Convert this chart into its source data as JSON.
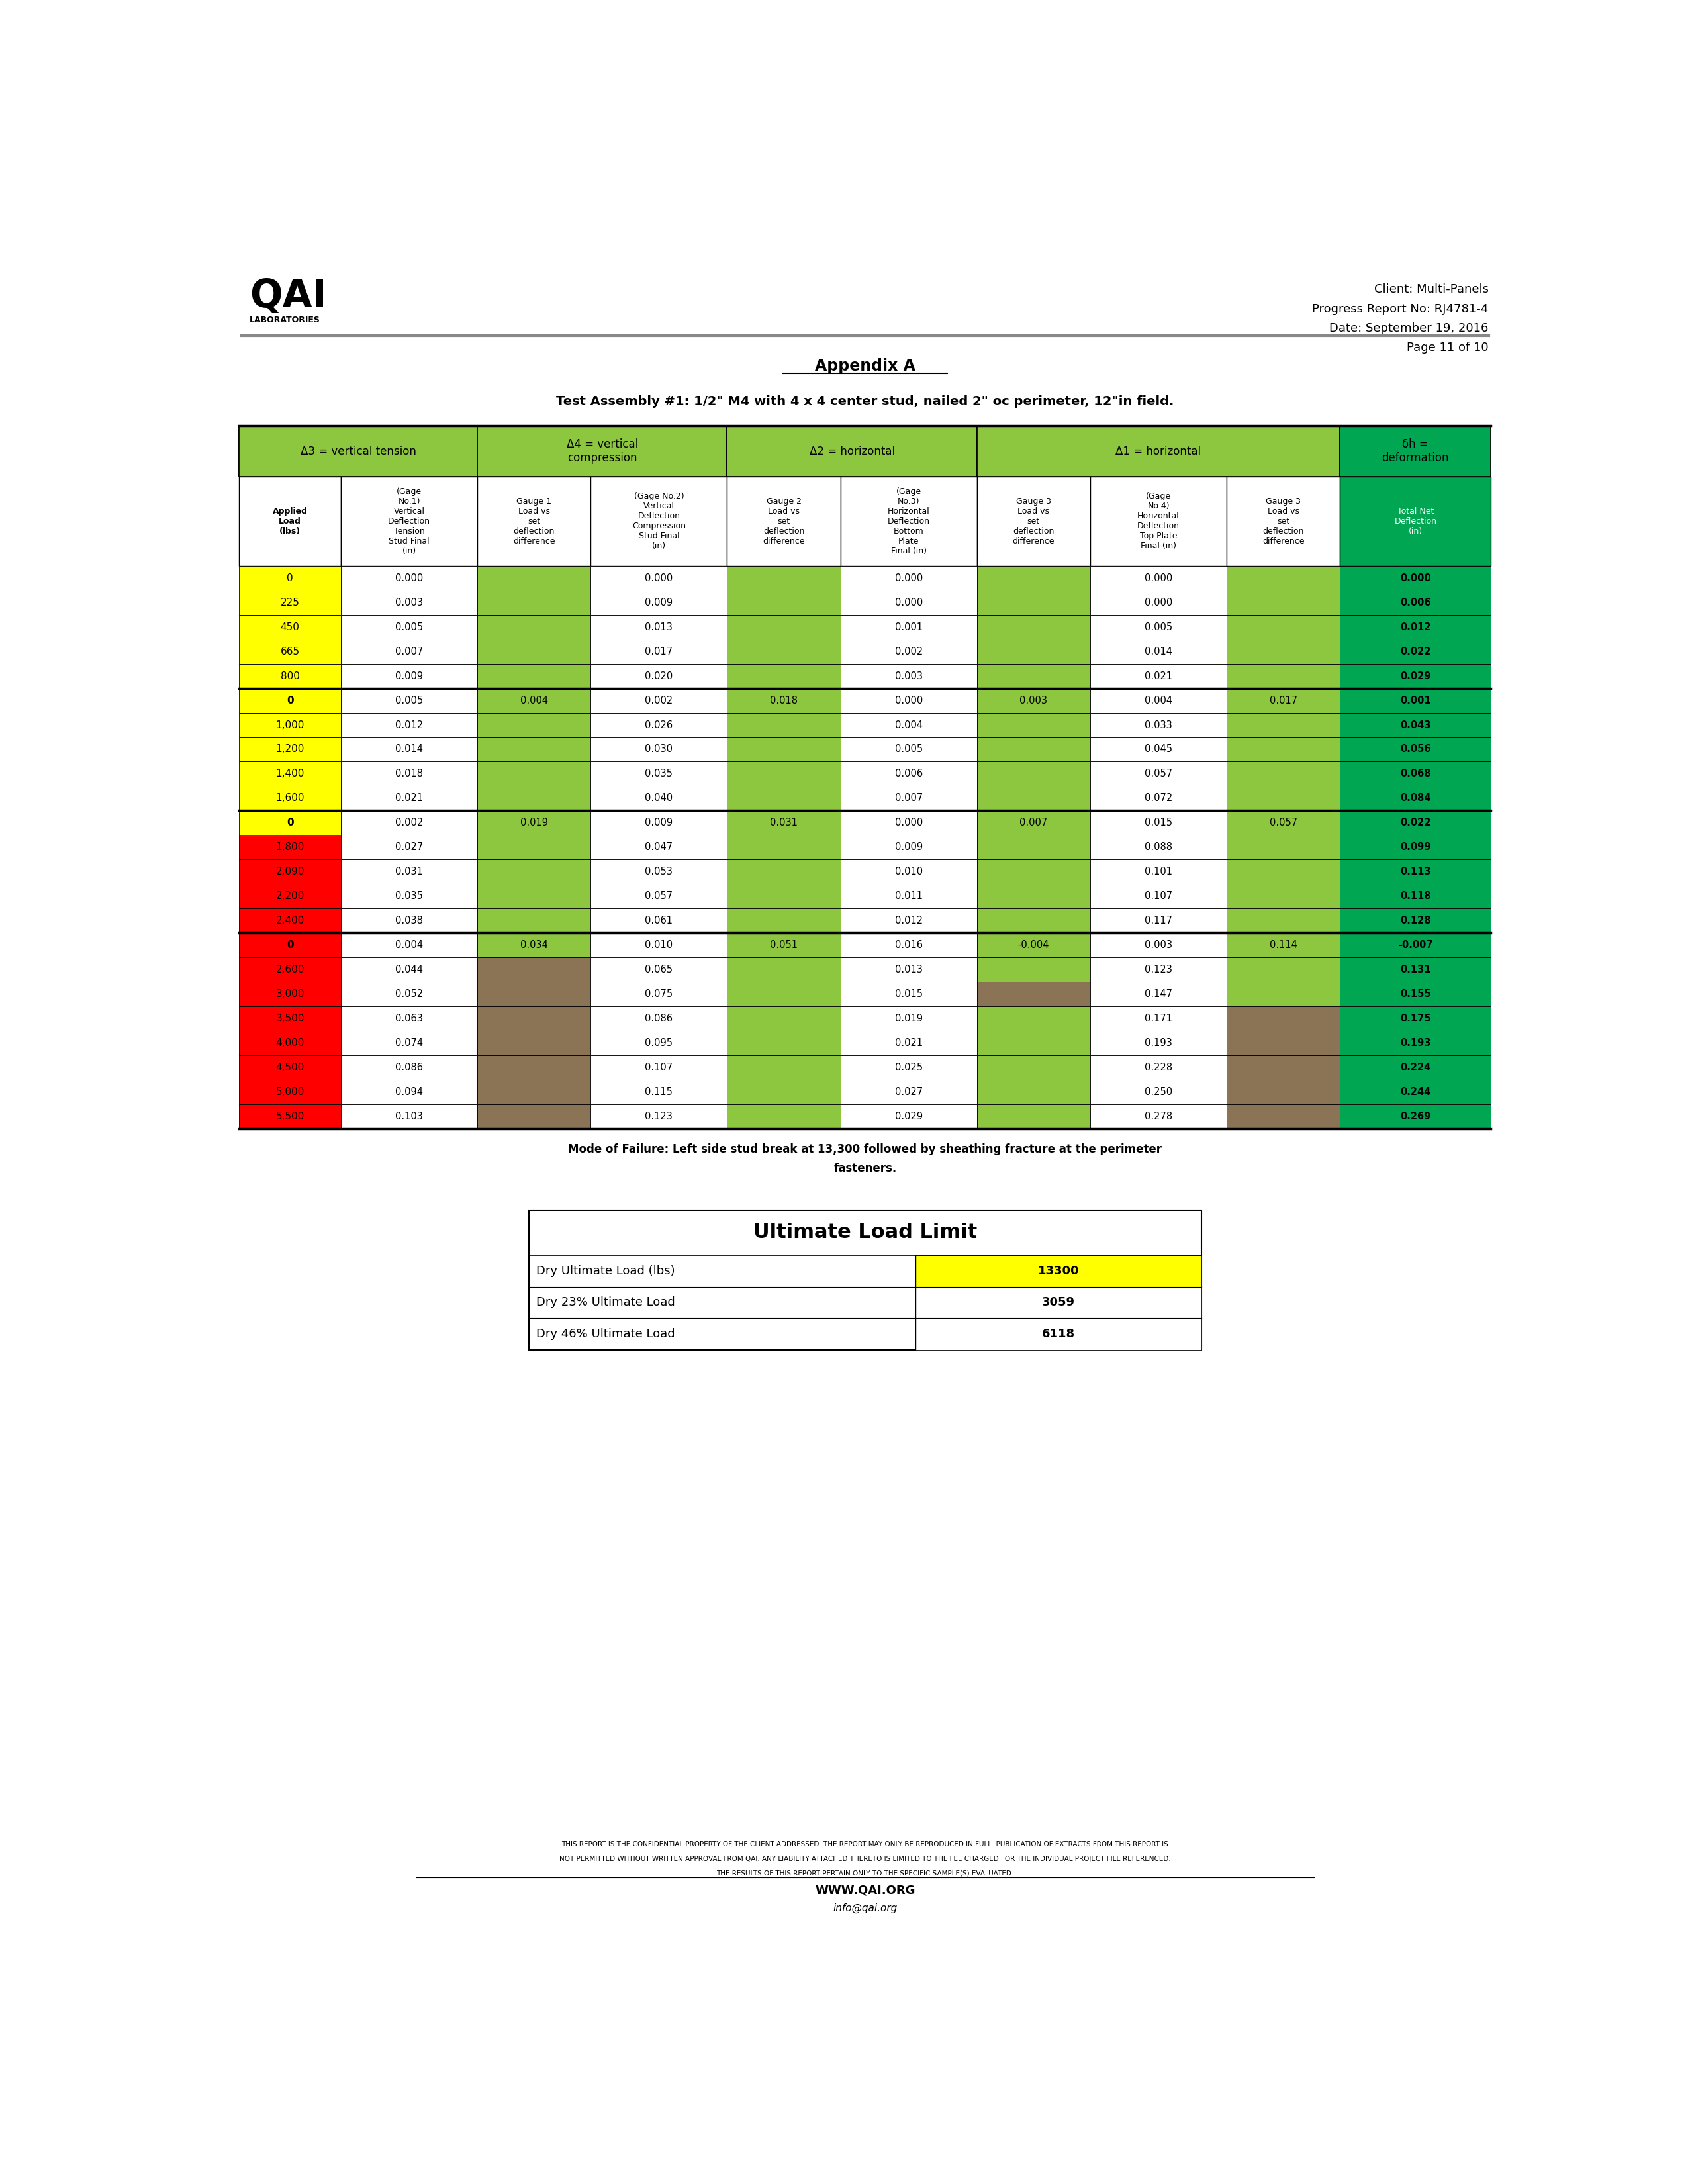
{
  "page_title_lines": [
    "Client: Multi-Panels",
    "Progress Report No: RJ4781-4",
    "Date: September 19, 2016",
    "Page 11 of 10"
  ],
  "appendix_title": "Appendix A",
  "test_assembly_title": "Test Assembly #1: 1/2\" M4 with 4 x 4 center stud, nailed 2\" oc perimeter, 12\"in field.",
  "delta3_header": "Δ3 = vertical tension",
  "delta4_header": "Δ4 = vertical\ncompression",
  "delta2_header": "Δ2 = horizontal",
  "delta1_header": "Δ1 = horizontal",
  "deltah_header": "δh =\ndeformation",
  "col_header_texts": [
    "Applied\nLoad\n(lbs)",
    "(Gage\nNo.1)\nVertical\nDeflection\nTension\nStud Final\n(in)",
    "Gauge 1\nLoad vs\nset\ndeflection\ndifference",
    "(Gage No.2)\nVertical\nDeflection\nCompression\nStud Final\n(in)",
    "Gauge 2\nLoad vs\nset\ndeflection\ndifference",
    "(Gage\nNo.3)\nHorizontal\nDeflection\nBottom\nPlate\nFinal (in)",
    "Gauge 3\nLoad vs\nset\ndeflection\ndifference",
    "(Gage\nNo.4)\nHorizontal\nDeflection\nTop Plate\nFinal (in)",
    "Gauge 3\nLoad vs\nset\ndeflection\ndifference",
    "Total Net\nDeflection\n(in)"
  ],
  "rows": [
    {
      "load": "0",
      "bg_load": "#ffff00",
      "c1": "0.000",
      "c2": "",
      "c3": "0.000",
      "c4": "",
      "c5": "0.000",
      "c6": "",
      "c7": "0.000",
      "c8": "",
      "c9": "0.000",
      "bg_c2": "#8dc63f",
      "bg_c4": "#8dc63f",
      "bg_c6": "#8dc63f",
      "bg_c8": "#8dc63f",
      "bg_c9": "#00a651",
      "border": false
    },
    {
      "load": "225",
      "bg_load": "#ffff00",
      "c1": "0.003",
      "c2": "",
      "c3": "0.009",
      "c4": "",
      "c5": "0.000",
      "c6": "",
      "c7": "0.000",
      "c8": "",
      "c9": "0.006",
      "bg_c2": "#8dc63f",
      "bg_c4": "#8dc63f",
      "bg_c6": "#8dc63f",
      "bg_c8": "#8dc63f",
      "bg_c9": "#00a651",
      "border": false
    },
    {
      "load": "450",
      "bg_load": "#ffff00",
      "c1": "0.005",
      "c2": "",
      "c3": "0.013",
      "c4": "",
      "c5": "0.001",
      "c6": "",
      "c7": "0.005",
      "c8": "",
      "c9": "0.012",
      "bg_c2": "#8dc63f",
      "bg_c4": "#8dc63f",
      "bg_c6": "#8dc63f",
      "bg_c8": "#8dc63f",
      "bg_c9": "#00a651",
      "border": false
    },
    {
      "load": "665",
      "bg_load": "#ffff00",
      "c1": "0.007",
      "c2": "",
      "c3": "0.017",
      "c4": "",
      "c5": "0.002",
      "c6": "",
      "c7": "0.014",
      "c8": "",
      "c9": "0.022",
      "bg_c2": "#8dc63f",
      "bg_c4": "#8dc63f",
      "bg_c6": "#8dc63f",
      "bg_c8": "#8dc63f",
      "bg_c9": "#00a651",
      "border": false
    },
    {
      "load": "800",
      "bg_load": "#ffff00",
      "c1": "0.009",
      "c2": "",
      "c3": "0.020",
      "c4": "",
      "c5": "0.003",
      "c6": "",
      "c7": "0.021",
      "c8": "",
      "c9": "0.029",
      "bg_c2": "#8dc63f",
      "bg_c4": "#8dc63f",
      "bg_c6": "#8dc63f",
      "bg_c8": "#8dc63f",
      "bg_c9": "#00a651",
      "border": false
    },
    {
      "load": "0",
      "bg_load": "#ffff00",
      "c1": "0.005",
      "c2": "0.004",
      "c3": "0.002",
      "c4": "0.018",
      "c5": "0.000",
      "c6": "0.003",
      "c7": "0.004",
      "c8": "0.017",
      "c9": "0.001",
      "bg_c2": "#8dc63f",
      "bg_c4": "#8dc63f",
      "bg_c6": "#8dc63f",
      "bg_c8": "#8dc63f",
      "bg_c9": "#00a651",
      "border": true
    },
    {
      "load": "1,000",
      "bg_load": "#ffff00",
      "c1": "0.012",
      "c2": "",
      "c3": "0.026",
      "c4": "",
      "c5": "0.004",
      "c6": "",
      "c7": "0.033",
      "c8": "",
      "c9": "0.043",
      "bg_c2": "#8dc63f",
      "bg_c4": "#8dc63f",
      "bg_c6": "#8dc63f",
      "bg_c8": "#8dc63f",
      "bg_c9": "#00a651",
      "border": false
    },
    {
      "load": "1,200",
      "bg_load": "#ffff00",
      "c1": "0.014",
      "c2": "",
      "c3": "0.030",
      "c4": "",
      "c5": "0.005",
      "c6": "",
      "c7": "0.045",
      "c8": "",
      "c9": "0.056",
      "bg_c2": "#8dc63f",
      "bg_c4": "#8dc63f",
      "bg_c6": "#8dc63f",
      "bg_c8": "#8dc63f",
      "bg_c9": "#00a651",
      "border": false
    },
    {
      "load": "1,400",
      "bg_load": "#ffff00",
      "c1": "0.018",
      "c2": "",
      "c3": "0.035",
      "c4": "",
      "c5": "0.006",
      "c6": "",
      "c7": "0.057",
      "c8": "",
      "c9": "0.068",
      "bg_c2": "#8dc63f",
      "bg_c4": "#8dc63f",
      "bg_c6": "#8dc63f",
      "bg_c8": "#8dc63f",
      "bg_c9": "#00a651",
      "border": false
    },
    {
      "load": "1,600",
      "bg_load": "#ffff00",
      "c1": "0.021",
      "c2": "",
      "c3": "0.040",
      "c4": "",
      "c5": "0.007",
      "c6": "",
      "c7": "0.072",
      "c8": "",
      "c9": "0.084",
      "bg_c2": "#8dc63f",
      "bg_c4": "#8dc63f",
      "bg_c6": "#8dc63f",
      "bg_c8": "#8dc63f",
      "bg_c9": "#00a651",
      "border": false
    },
    {
      "load": "0",
      "bg_load": "#ffff00",
      "c1": "0.002",
      "c2": "0.019",
      "c3": "0.009",
      "c4": "0.031",
      "c5": "0.000",
      "c6": "0.007",
      "c7": "0.015",
      "c8": "0.057",
      "c9": "0.022",
      "bg_c2": "#8dc63f",
      "bg_c4": "#8dc63f",
      "bg_c6": "#8dc63f",
      "bg_c8": "#8dc63f",
      "bg_c9": "#00a651",
      "border": true
    },
    {
      "load": "1,800",
      "bg_load": "#ff0000",
      "c1": "0.027",
      "c2": "",
      "c3": "0.047",
      "c4": "",
      "c5": "0.009",
      "c6": "",
      "c7": "0.088",
      "c8": "",
      "c9": "0.099",
      "bg_c2": "#8dc63f",
      "bg_c4": "#8dc63f",
      "bg_c6": "#8dc63f",
      "bg_c8": "#8dc63f",
      "bg_c9": "#00a651",
      "border": false
    },
    {
      "load": "2,090",
      "bg_load": "#ff0000",
      "c1": "0.031",
      "c2": "",
      "c3": "0.053",
      "c4": "",
      "c5": "0.010",
      "c6": "",
      "c7": "0.101",
      "c8": "",
      "c9": "0.113",
      "bg_c2": "#8dc63f",
      "bg_c4": "#8dc63f",
      "bg_c6": "#8dc63f",
      "bg_c8": "#8dc63f",
      "bg_c9": "#00a651",
      "border": false
    },
    {
      "load": "2,200",
      "bg_load": "#ff0000",
      "c1": "0.035",
      "c2": "",
      "c3": "0.057",
      "c4": "",
      "c5": "0.011",
      "c6": "",
      "c7": "0.107",
      "c8": "",
      "c9": "0.118",
      "bg_c2": "#8dc63f",
      "bg_c4": "#8dc63f",
      "bg_c6": "#8dc63f",
      "bg_c8": "#8dc63f",
      "bg_c9": "#00a651",
      "border": false
    },
    {
      "load": "2,400",
      "bg_load": "#ff0000",
      "c1": "0.038",
      "c2": "",
      "c3": "0.061",
      "c4": "",
      "c5": "0.012",
      "c6": "",
      "c7": "0.117",
      "c8": "",
      "c9": "0.128",
      "bg_c2": "#8dc63f",
      "bg_c4": "#8dc63f",
      "bg_c6": "#8dc63f",
      "bg_c8": "#8dc63f",
      "bg_c9": "#00a651",
      "border": false
    },
    {
      "load": "0",
      "bg_load": "#ff0000",
      "c1": "0.004",
      "c2": "0.034",
      "c3": "0.010",
      "c4": "0.051",
      "c5": "0.016",
      "c6": "-0.004",
      "c7": "0.003",
      "c8": "0.114",
      "c9": "-0.007",
      "bg_c2": "#8dc63f",
      "bg_c4": "#8dc63f",
      "bg_c6": "#8dc63f",
      "bg_c8": "#8dc63f",
      "bg_c9": "#00a651",
      "border": true
    },
    {
      "load": "2,600",
      "bg_load": "#ff0000",
      "c1": "0.044",
      "c2": "",
      "c3": "0.065",
      "c4": "",
      "c5": "0.013",
      "c6": "",
      "c7": "0.123",
      "c8": "",
      "c9": "0.131",
      "bg_c2": "#8B7355",
      "bg_c4": "#8dc63f",
      "bg_c6": "#8dc63f",
      "bg_c8": "#8dc63f",
      "bg_c9": "#00a651",
      "border": false
    },
    {
      "load": "3,000",
      "bg_load": "#ff0000",
      "c1": "0.052",
      "c2": "",
      "c3": "0.075",
      "c4": "",
      "c5": "0.015",
      "c6": "",
      "c7": "0.147",
      "c8": "",
      "c9": "0.155",
      "bg_c2": "#8B7355",
      "bg_c4": "#8dc63f",
      "bg_c6": "#8B7355",
      "bg_c8": "#8dc63f",
      "bg_c9": "#00a651",
      "border": false
    },
    {
      "load": "3,500",
      "bg_load": "#ff0000",
      "c1": "0.063",
      "c2": "",
      "c3": "0.086",
      "c4": "",
      "c5": "0.019",
      "c6": "",
      "c7": "0.171",
      "c8": "",
      "c9": "0.175",
      "bg_c2": "#8B7355",
      "bg_c4": "#8dc63f",
      "bg_c6": "#8dc63f",
      "bg_c8": "#8B7355",
      "bg_c9": "#00a651",
      "border": false
    },
    {
      "load": "4,000",
      "bg_load": "#ff0000",
      "c1": "0.074",
      "c2": "",
      "c3": "0.095",
      "c4": "",
      "c5": "0.021",
      "c6": "",
      "c7": "0.193",
      "c8": "",
      "c9": "0.193",
      "bg_c2": "#8B7355",
      "bg_c4": "#8dc63f",
      "bg_c6": "#8dc63f",
      "bg_c8": "#8B7355",
      "bg_c9": "#00a651",
      "border": false
    },
    {
      "load": "4,500",
      "bg_load": "#ff0000",
      "c1": "0.086",
      "c2": "",
      "c3": "0.107",
      "c4": "",
      "c5": "0.025",
      "c6": "",
      "c7": "0.228",
      "c8": "",
      "c9": "0.224",
      "bg_c2": "#8B7355",
      "bg_c4": "#8dc63f",
      "bg_c6": "#8dc63f",
      "bg_c8": "#8B7355",
      "bg_c9": "#00a651",
      "border": false
    },
    {
      "load": "5,000",
      "bg_load": "#ff0000",
      "c1": "0.094",
      "c2": "",
      "c3": "0.115",
      "c4": "",
      "c5": "0.027",
      "c6": "",
      "c7": "0.250",
      "c8": "",
      "c9": "0.244",
      "bg_c2": "#8B7355",
      "bg_c4": "#8dc63f",
      "bg_c6": "#8dc63f",
      "bg_c8": "#8B7355",
      "bg_c9": "#00a651",
      "border": false
    },
    {
      "load": "5,500",
      "bg_load": "#ff0000",
      "c1": "0.103",
      "c2": "",
      "c3": "0.123",
      "c4": "",
      "c5": "0.029",
      "c6": "",
      "c7": "0.278",
      "c8": "",
      "c9": "0.269",
      "bg_c2": "#8B7355",
      "bg_c4": "#8dc63f",
      "bg_c6": "#8dc63f",
      "bg_c8": "#8B7355",
      "bg_c9": "#00a651",
      "border": false
    }
  ],
  "failure_mode_line1": "Mode of Failure: Left side stud break at 13,300 followed by sheathing fracture at the perimeter",
  "failure_mode_line2": "fasteners.",
  "ultimate_load_title": "Ultimate Load Limit",
  "ultimate_load_rows": [
    {
      "label": "Dry Ultimate Load (lbs)",
      "value": "13300",
      "bg_value": "#ffff00"
    },
    {
      "label": "Dry 23% Ultimate Load",
      "value": "3059",
      "bg_value": "#ffffff"
    },
    {
      "label": "Dry 46% Ultimate Load",
      "value": "6118",
      "bg_value": "#ffffff"
    }
  ],
  "footer_text_line1": "THIS REPORT IS THE CONFIDENTIAL PROPERTY OF THE CLIENT ADDRESSED. THE REPORT MAY ONLY BE REPRODUCED IN FULL. PUBLICATION OF EXTRACTS FROM THIS REPORT IS",
  "footer_text_line2": "NOT PERMITTED WITHOUT WRITTEN APPROVAL FROM QAI. ANY LIABILITY ATTACHED THERETO IS LIMITED TO THE FEE CHARGED FOR THE INDIVIDUAL PROJECT FILE REFERENCED.",
  "footer_text_line3": "THE RESULTS OF THIS REPORT PERTAIN ONLY TO THE SPECIFIC SAMPLE(S) EVALUATED.",
  "website": "WWW.QAI.ORG",
  "email": "info@qai.org",
  "light_green": "#8dc63f",
  "dark_green": "#00a651",
  "yellow": "#ffff00",
  "red": "#ff0000",
  "tan": "#8B7355"
}
